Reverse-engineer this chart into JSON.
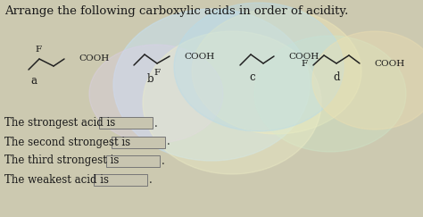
{
  "title": "Arrange the following carboxylic acids in order of acidity.",
  "bg_color": "#ccc9b0",
  "text_color": "#1a1a1a",
  "title_fontsize": 9.5,
  "label_fontsize": 8.5,
  "mol_fontsize": 7.5,
  "questions": [
    "The strongest acid is",
    "The second strongest is",
    "The third strongest is",
    "The weakest acid is"
  ],
  "swirls": [
    [
      237,
      95,
      110,
      85,
      "#c5dff0",
      0.55
    ],
    [
      310,
      80,
      95,
      70,
      "#f0e8b8",
      0.45
    ],
    [
      370,
      105,
      85,
      65,
      "#cceacc",
      0.35
    ],
    [
      175,
      105,
      75,
      55,
      "#ddd0ee",
      0.35
    ],
    [
      260,
      115,
      100,
      80,
      "#f0f0c8",
      0.38
    ],
    [
      290,
      75,
      95,
      72,
      "#b8dcea",
      0.42
    ],
    [
      420,
      90,
      70,
      55,
      "#f0e0b0",
      0.38
    ]
  ],
  "figsize": [
    4.74,
    2.43
  ],
  "dpi": 100
}
